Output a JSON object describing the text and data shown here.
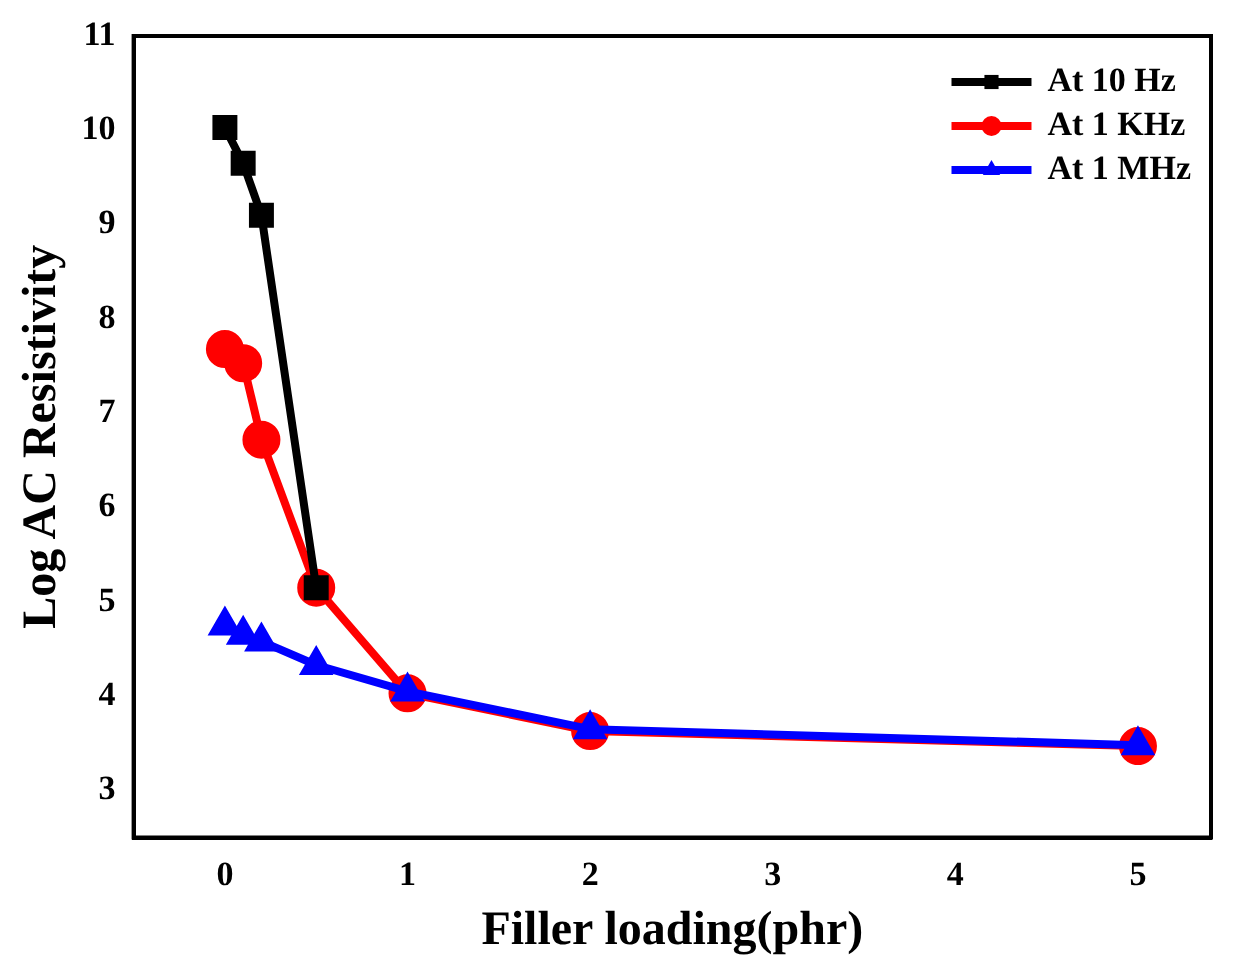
{
  "chart_data": {
    "type": "line",
    "xlabel": "Filler loading(phr)",
    "ylabel": "Log AC Resistivity",
    "x": [
      0,
      0.1,
      0.2,
      0.5,
      1,
      2,
      5
    ],
    "series": [
      {
        "name": "At 10 Hz",
        "color": "#000000",
        "marker": "square",
        "values": [
          10.03,
          9.65,
          9.1,
          5.15,
          null,
          null,
          null
        ]
      },
      {
        "name": "At 1 KHz",
        "color": "#ff0000",
        "marker": "circle",
        "values": [
          7.68,
          7.53,
          6.72,
          5.15,
          4.03,
          3.63,
          3.47
        ]
      },
      {
        "name": "At 1 MHz",
        "color": "#0000ff",
        "marker": "triangle",
        "values": [
          4.75,
          4.65,
          4.58,
          4.33,
          4.05,
          3.65,
          3.48
        ]
      }
    ],
    "xlim": [
      -0.5,
      5.4
    ],
    "xticks": [
      0,
      1,
      2,
      3,
      4,
      5
    ],
    "ylim": [
      2.5,
      11
    ],
    "yticks": [
      3,
      4,
      5,
      6,
      7,
      8,
      9,
      10,
      11
    ],
    "grid": false,
    "legend": "top right",
    "line_style": "solid"
  }
}
